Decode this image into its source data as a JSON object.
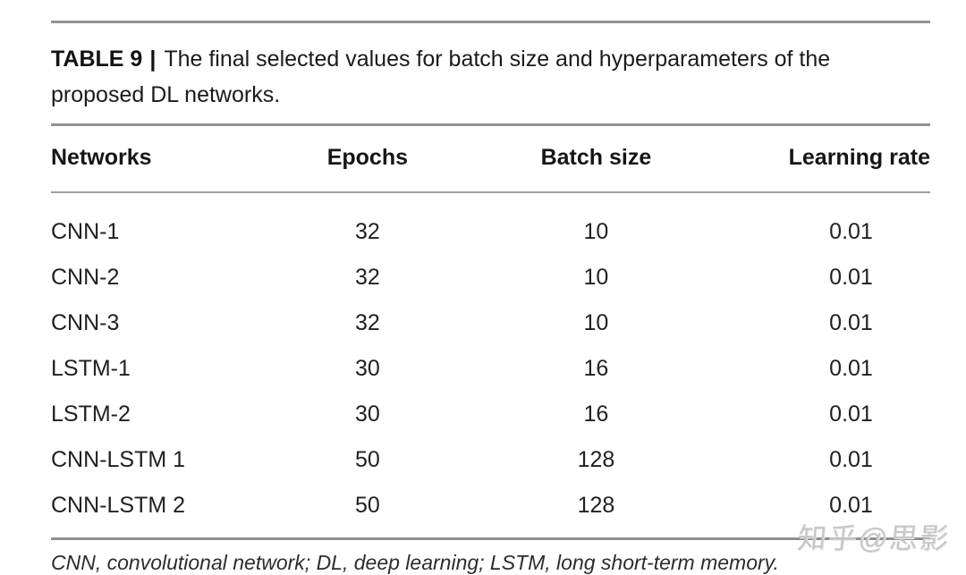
{
  "colors": {
    "background": "#ffffff",
    "text": "#1c1c1e",
    "rule_gray": "#929292",
    "watermark_gray": "#c7c7c7"
  },
  "caption": {
    "label": "TABLE 9",
    "separator": "|",
    "text": "The final selected values for batch size and hyperparameters of the proposed DL networks."
  },
  "table": {
    "headers": [
      "Networks",
      "Epochs",
      "Batch size",
      "Learning rate"
    ],
    "rows": [
      {
        "network": "CNN-1",
        "epochs": "32",
        "batch_size": "10",
        "learning_rate": "0.01"
      },
      {
        "network": "CNN-2",
        "epochs": "32",
        "batch_size": "10",
        "learning_rate": "0.01"
      },
      {
        "network": "CNN-3",
        "epochs": "32",
        "batch_size": "10",
        "learning_rate": "0.01"
      },
      {
        "network": "LSTM-1",
        "epochs": "30",
        "batch_size": "16",
        "learning_rate": "0.01"
      },
      {
        "network": "LSTM-2",
        "epochs": "30",
        "batch_size": "16",
        "learning_rate": "0.01"
      },
      {
        "network": "CNN-LSTM 1",
        "epochs": "50",
        "batch_size": "128",
        "learning_rate": "0.01"
      },
      {
        "network": "CNN-LSTM 2",
        "epochs": "50",
        "batch_size": "128",
        "learning_rate": "0.01"
      }
    ]
  },
  "footnote": {
    "text": "CNN, convolutional network; DL, deep learning; LSTM, long short-term memory."
  },
  "watermark": {
    "text": "知乎@思影"
  }
}
